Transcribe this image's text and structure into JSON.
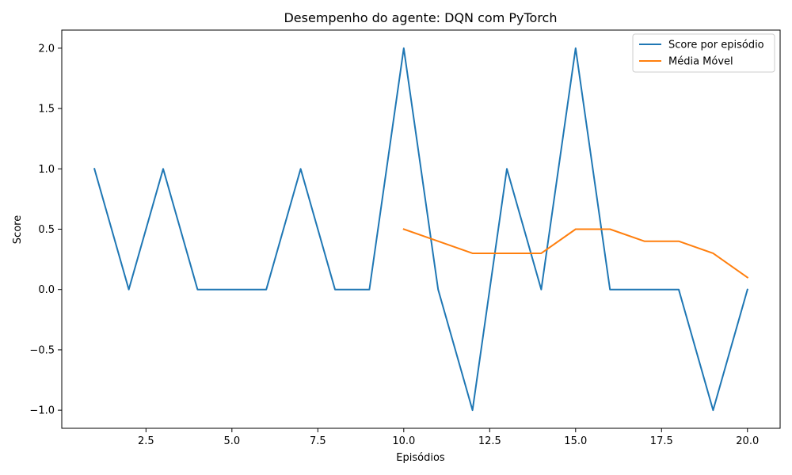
{
  "chart_data": {
    "type": "line",
    "title": "Desempenho do agente: DQN com PyTorch",
    "xlabel": "Episódios",
    "ylabel": "Score",
    "xlim": [
      0.05,
      20.95
    ],
    "ylim": [
      -1.15,
      2.15
    ],
    "xticks": [
      2.5,
      5.0,
      7.5,
      10.0,
      12.5,
      15.0,
      17.5,
      20.0
    ],
    "xtick_labels": [
      "2.5",
      "5.0",
      "7.5",
      "10.0",
      "12.5",
      "15.0",
      "17.5",
      "20.0"
    ],
    "yticks": [
      -1.0,
      -0.5,
      0.0,
      0.5,
      1.0,
      1.5,
      2.0
    ],
    "ytick_labels": [
      "−1.0",
      "−0.5",
      "0.0",
      "0.5",
      "1.0",
      "1.5",
      "2.0"
    ],
    "grid": false,
    "legend_position": "top-right",
    "series": [
      {
        "name": "Score por episódio",
        "color": "#1f77b4",
        "x": [
          1,
          2,
          3,
          4,
          5,
          6,
          7,
          8,
          9,
          10,
          11,
          12,
          13,
          14,
          15,
          16,
          17,
          18,
          19,
          20
        ],
        "values": [
          1,
          0,
          1,
          0,
          0,
          0,
          1,
          0,
          0,
          2,
          0,
          -1,
          1,
          0,
          2,
          0,
          0,
          0,
          -1,
          0
        ]
      },
      {
        "name": "Média Móvel",
        "color": "#ff7f0e",
        "x": [
          10,
          11,
          12,
          13,
          14,
          15,
          16,
          17,
          18,
          19,
          20
        ],
        "values": [
          0.5,
          0.4,
          0.3,
          0.3,
          0.3,
          0.5,
          0.5,
          0.4,
          0.4,
          0.3,
          0.1
        ]
      }
    ]
  }
}
